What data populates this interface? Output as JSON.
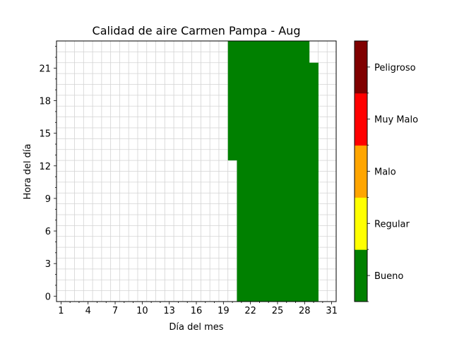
{
  "chart_data": {
    "type": "heatmap",
    "title": "Calidad de aire Carmen Pampa - Aug",
    "xlabel": "Día del mes",
    "ylabel": "Hora del día",
    "xlim": [
      0.5,
      31.5
    ],
    "ylim": [
      -0.5,
      23.5
    ],
    "x_ticks": [
      1,
      4,
      7,
      10,
      13,
      16,
      19,
      22,
      25,
      28,
      31
    ],
    "y_ticks": [
      0,
      3,
      6,
      9,
      12,
      15,
      18,
      21
    ],
    "grid": true,
    "colorbar": {
      "categories": [
        "Bueno",
        "Regular",
        "Malo",
        "Muy Malo",
        "Peligroso"
      ],
      "colors": [
        "#008000",
        "#ffff00",
        "#ffa500",
        "#ff0000",
        "#800000"
      ]
    },
    "filled_columns": [
      {
        "day": 20,
        "from_hour": 13,
        "to_hour": 23,
        "category": "Bueno"
      },
      {
        "day": 21,
        "from_hour": 0,
        "to_hour": 23,
        "category": "Bueno"
      },
      {
        "day": 22,
        "from_hour": 0,
        "to_hour": 23,
        "category": "Bueno"
      },
      {
        "day": 23,
        "from_hour": 0,
        "to_hour": 23,
        "category": "Bueno"
      },
      {
        "day": 24,
        "from_hour": 0,
        "to_hour": 23,
        "category": "Bueno"
      },
      {
        "day": 25,
        "from_hour": 0,
        "to_hour": 23,
        "category": "Bueno"
      },
      {
        "day": 26,
        "from_hour": 0,
        "to_hour": 23,
        "category": "Bueno"
      },
      {
        "day": 27,
        "from_hour": 0,
        "to_hour": 23,
        "category": "Bueno"
      },
      {
        "day": 28,
        "from_hour": 0,
        "to_hour": 23,
        "category": "Bueno"
      },
      {
        "day": 29,
        "from_hour": 0,
        "to_hour": 21,
        "category": "Bueno"
      }
    ]
  }
}
